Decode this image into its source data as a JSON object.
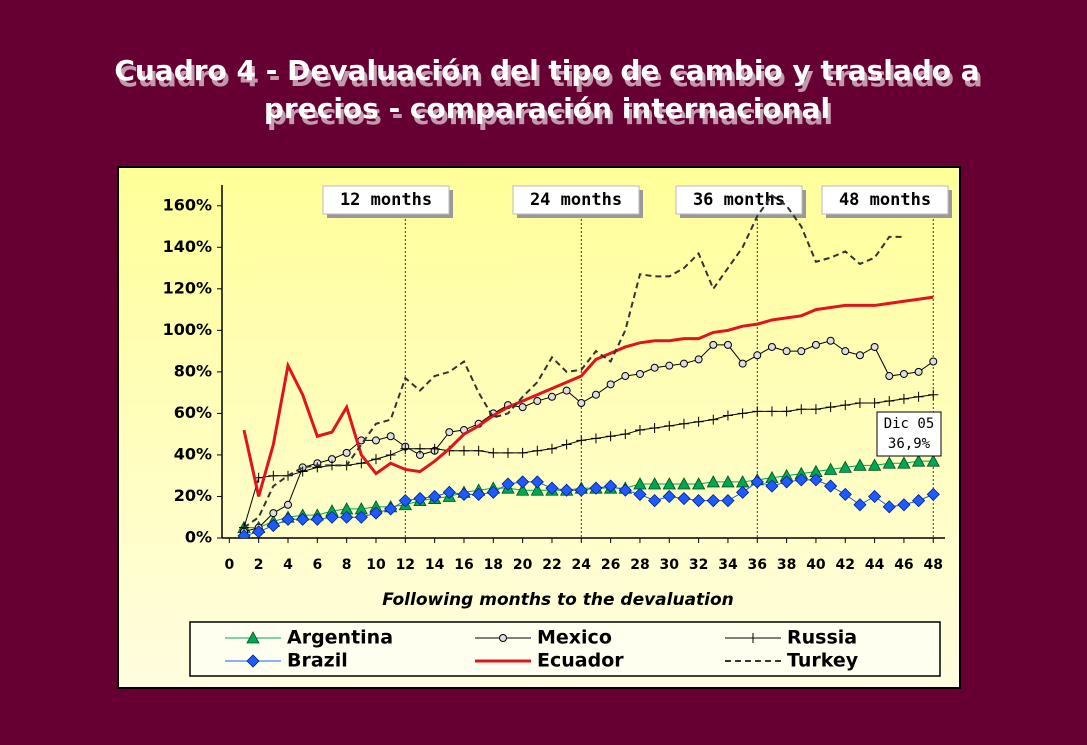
{
  "chart_data": {
    "type": "line",
    "title": [
      "Cuadro 4 - Devaluación del tipo de cambio y traslado a",
      "precios - comparación internacional"
    ],
    "x_label": "Following months to the devaluation",
    "x": [
      1,
      2,
      3,
      4,
      5,
      6,
      7,
      8,
      9,
      10,
      11,
      12,
      13,
      14,
      15,
      16,
      17,
      18,
      19,
      20,
      21,
      22,
      23,
      24,
      25,
      26,
      27,
      28,
      29,
      30,
      31,
      32,
      33,
      34,
      35,
      36,
      37,
      38,
      39,
      40,
      41,
      42,
      43,
      44,
      45,
      46,
      47,
      48
    ],
    "series": [
      {
        "name": "Argentina",
        "color": "#00a651",
        "marker": "triangle",
        "dash": false,
        "values": [
          5,
          5,
          8,
          10,
          11,
          11,
          13,
          14,
          14,
          15,
          15,
          16,
          18,
          19,
          20,
          22,
          23,
          24,
          24,
          23,
          23,
          23,
          23,
          24,
          24,
          24,
          24,
          26,
          26,
          26,
          26,
          26,
          27,
          27,
          27,
          28,
          29,
          30,
          31,
          32,
          33,
          34,
          35,
          35,
          36,
          36,
          37,
          37
        ]
      },
      {
        "name": "Mexico",
        "color": "#000000",
        "marker": "circle",
        "dash": false,
        "values": [
          3,
          5,
          12,
          16,
          34,
          36,
          38,
          41,
          47,
          47,
          49,
          44,
          40,
          42,
          51,
          52,
          55,
          60,
          64,
          63,
          66,
          68,
          71,
          65,
          69,
          74,
          78,
          79,
          82,
          83,
          84,
          86,
          93,
          93,
          84,
          88,
          92,
          90,
          90,
          93,
          95,
          90,
          88,
          92,
          78,
          79,
          80,
          85
        ]
      },
      {
        "name": "Russia",
        "color": "#000000",
        "marker": "plus",
        "dash": false,
        "values": [
          5,
          29,
          30,
          30,
          32,
          34,
          35,
          35,
          36,
          38,
          40,
          43,
          43,
          43,
          42,
          42,
          42,
          41,
          41,
          41,
          42,
          43,
          45,
          47,
          48,
          49,
          50,
          52,
          53,
          54,
          55,
          56,
          57,
          59,
          60,
          61,
          61,
          61,
          62,
          62,
          63,
          64,
          65,
          65,
          66,
          67,
          68,
          69
        ]
      },
      {
        "name": "Brazil",
        "color": "#1e5aff",
        "marker": "diamond",
        "dash": false,
        "values": [
          1,
          3,
          6,
          9,
          9,
          9,
          10,
          10,
          10,
          12,
          14,
          18,
          19,
          20,
          22,
          21,
          21,
          22,
          26,
          27,
          27,
          24,
          23,
          23,
          24,
          25,
          23,
          21,
          18,
          20,
          19,
          18,
          18,
          18,
          22,
          27,
          25,
          27,
          28,
          28,
          25,
          21,
          16,
          20,
          15,
          16,
          18,
          21
        ]
      },
      {
        "name": "Ecuador",
        "color": "#e0141e",
        "marker": "none",
        "dash": false,
        "values": [
          52,
          20,
          45,
          83,
          69,
          49,
          51,
          63,
          40,
          31,
          36,
          33,
          32,
          37,
          43,
          50,
          54,
          59,
          63,
          66,
          69,
          72,
          75,
          78,
          86,
          89,
          92,
          94,
          95,
          95,
          96,
          96,
          99,
          100,
          102,
          103,
          105,
          106,
          107,
          110,
          111,
          112,
          112,
          112,
          113,
          114,
          115,
          116
        ]
      },
      {
        "name": "Turkey",
        "color": "#333333",
        "marker": "none",
        "dash": true,
        "values": [
          5,
          10,
          25,
          30,
          34,
          35,
          35,
          35,
          45,
          55,
          57,
          77,
          71,
          78,
          80,
          85,
          70,
          58,
          60,
          68,
          75,
          87,
          80,
          81,
          90,
          85,
          100,
          127,
          126,
          126,
          130,
          137,
          120,
          130,
          140,
          155,
          165,
          160,
          150,
          133,
          135,
          138,
          132,
          135,
          145,
          145,
          null,
          null
        ]
      }
    ],
    "xlim": [
      -0.5,
      48.8
    ],
    "xticks": [
      0,
      2,
      4,
      6,
      8,
      10,
      12,
      14,
      16,
      18,
      20,
      22,
      24,
      26,
      28,
      30,
      32,
      34,
      36,
      38,
      40,
      42,
      44,
      46,
      48
    ],
    "ylim": [
      0,
      170
    ],
    "yticks": [
      {
        "value": 0,
        "label": "0%"
      },
      {
        "value": 20,
        "label": "20%"
      },
      {
        "value": 40,
        "label": "40%"
      },
      {
        "value": 60,
        "label": "60%"
      },
      {
        "value": 80,
        "label": "80%"
      },
      {
        "value": 100,
        "label": "100%"
      },
      {
        "value": 120,
        "label": "120%"
      },
      {
        "value": 140,
        "label": "140%"
      },
      {
        "value": 160,
        "label": "160%"
      }
    ],
    "annotations": [
      {
        "text": "12 months",
        "x": 12
      },
      {
        "text": "24 months",
        "x": 24
      },
      {
        "text": "36 months",
        "x": 36
      },
      {
        "text": "48 months",
        "x": 48
      }
    ],
    "callout": [
      "Dic 05",
      "36,9%"
    ],
    "legend": "bottom"
  }
}
